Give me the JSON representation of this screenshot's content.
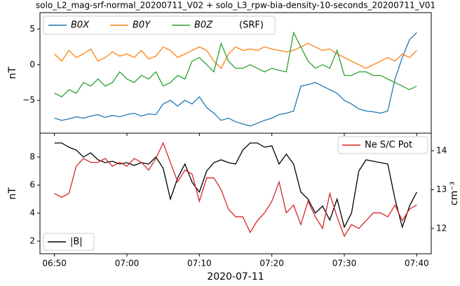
{
  "chart_data": [
    {
      "type": "line",
      "title": "solo_L2_mag-srf-normal_20200711_V02 + solo_L3_rpw-bia-density-10-seconds_20200711_V01",
      "ylabel": "nT",
      "legend": "upper left",
      "legend_note": "(SRF)",
      "x": [
        "06:50",
        "06:51",
        "06:52",
        "06:53",
        "06:54",
        "06:55",
        "06:56",
        "06:57",
        "06:58",
        "06:59",
        "07:00",
        "07:01",
        "07:02",
        "07:03",
        "07:04",
        "07:05",
        "07:06",
        "07:07",
        "07:08",
        "07:09",
        "07:10",
        "07:11",
        "07:12",
        "07:13",
        "07:14",
        "07:15",
        "07:16",
        "07:17",
        "07:18",
        "07:19",
        "07:20",
        "07:21",
        "07:22",
        "07:23",
        "07:24",
        "07:25",
        "07:26",
        "07:27",
        "07:28",
        "07:29",
        "07:30",
        "07:31",
        "07:32",
        "07:33",
        "07:34",
        "07:35",
        "07:36",
        "07:37",
        "07:38",
        "07:39",
        "07:40"
      ],
      "xlim": [
        "06:48",
        "07:42"
      ],
      "xticks": [
        "06:50",
        "07:00",
        "07:10",
        "07:20",
        "07:30",
        "07:40"
      ],
      "ylim": [
        -9.6,
        7.3
      ],
      "yticks": [
        {
          "value": -5,
          "label": "−5"
        },
        0,
        5
      ],
      "series": [
        {
          "name": "B0X",
          "color": "#1f77b4",
          "values": [
            -7.5,
            -7.8,
            -7.6,
            -7.3,
            -7.5,
            -7.2,
            -7.0,
            -7.4,
            -7.1,
            -7.3,
            -7.0,
            -6.8,
            -7.2,
            -6.9,
            -7.0,
            -5.5,
            -5.0,
            -5.8,
            -5.0,
            -5.5,
            -4.5,
            -6.0,
            -6.8,
            -7.8,
            -7.5,
            -8.0,
            -8.3,
            -8.6,
            -8.2,
            -7.8,
            -7.5,
            -7.0,
            -6.8,
            -6.5,
            -3.0,
            -2.8,
            -2.5,
            -3.0,
            -3.5,
            -4.0,
            -5.0,
            -5.5,
            -6.2,
            -6.5,
            -6.6,
            -6.8,
            -6.5,
            -2.0,
            1.0,
            3.5,
            4.5
          ]
        },
        {
          "name": "B0Y",
          "color": "#ff7f0e",
          "values": [
            1.5,
            0.5,
            2,
            1,
            1.5,
            2.2,
            0.5,
            1.0,
            1.8,
            1.2,
            1.5,
            1.0,
            2.0,
            0.8,
            1.2,
            2.5,
            2.0,
            1.0,
            1.5,
            2.0,
            2.5,
            2.0,
            0.5,
            -0.5,
            1.5,
            2.5,
            2.0,
            2.2,
            2.0,
            2.5,
            2.2,
            2.0,
            1.8,
            2.0,
            2.5,
            3.0,
            2.5,
            2.0,
            2.2,
            1.5,
            1.0,
            0.5,
            0.0,
            -0.5,
            0.0,
            0.5,
            1.0,
            0.5,
            1.5,
            1.0,
            2.0
          ]
        },
        {
          "name": "B0Z",
          "color": "#2ca02c",
          "values": [
            -4.0,
            -4.5,
            -3.5,
            -4.0,
            -2.5,
            -3.0,
            -2.0,
            -3.0,
            -2.5,
            -1.0,
            -2.0,
            -2.5,
            -1.5,
            -2.0,
            -1.0,
            -3.0,
            -2.5,
            -1.5,
            -2.0,
            0.5,
            1.0,
            0.0,
            -1.0,
            3.0,
            0.5,
            -0.5,
            -0.5,
            0.0,
            -0.5,
            -1.0,
            -0.5,
            -0.8,
            -1.0,
            4.5,
            2.5,
            0.5,
            -0.5,
            0.0,
            -0.5,
            2.0,
            -1.5,
            -1.5,
            -1.0,
            -1.0,
            -1.5,
            -1.5,
            -2.0,
            -2.5,
            -3.0,
            -3.5,
            -3.0
          ]
        }
      ]
    },
    {
      "type": "line",
      "xlabel": "2020-07-11",
      "ylabel": "nT",
      "y2label": "cm⁻³",
      "x": [
        "06:50",
        "06:51",
        "06:52",
        "06:53",
        "06:54",
        "06:55",
        "06:56",
        "06:57",
        "06:58",
        "06:59",
        "07:00",
        "07:01",
        "07:02",
        "07:03",
        "07:04",
        "07:05",
        "07:06",
        "07:07",
        "07:08",
        "07:09",
        "07:10",
        "07:11",
        "07:12",
        "07:13",
        "07:14",
        "07:15",
        "07:16",
        "07:17",
        "07:18",
        "07:19",
        "07:20",
        "07:21",
        "07:22",
        "07:23",
        "07:24",
        "07:25",
        "07:26",
        "07:27",
        "07:28",
        "07:29",
        "07:30",
        "07:31",
        "07:32",
        "07:33",
        "07:34",
        "07:35",
        "07:36",
        "07:37",
        "07:38",
        "07:39",
        "07:40"
      ],
      "xlim": [
        "06:48",
        "07:42"
      ],
      "xticks": [
        "06:50",
        "07:00",
        "07:10",
        "07:20",
        "07:30",
        "07:40"
      ],
      "ylim": [
        1.1,
        9.7
      ],
      "yticks": [
        2,
        4,
        6,
        8
      ],
      "y2lim": [
        11.35,
        14.45
      ],
      "y2ticks": [
        12,
        13,
        14
      ],
      "series": [
        {
          "name": "|B|",
          "color": "#000000",
          "legend_loc": "lower left",
          "values": [
            9.0,
            9.0,
            8.7,
            8.5,
            8.0,
            8.3,
            7.8,
            7.6,
            7.7,
            7.5,
            7.6,
            7.4,
            7.6,
            7.5,
            8.0,
            7.2,
            5.0,
            6.5,
            7.5,
            6.2,
            5.5,
            7.0,
            7.6,
            7.8,
            7.6,
            7.5,
            8.5,
            9.0,
            9.0,
            8.7,
            8.8,
            7.5,
            8.2,
            7.5,
            5.5,
            5.0,
            4.0,
            4.5,
            3.5,
            5.0,
            3.0,
            4.0,
            7.0,
            7.8,
            7.7,
            7.6,
            7.5,
            5.0,
            3.0,
            4.5,
            5.5
          ]
        },
        {
          "name": "Ne S/C Pot",
          "color": "#d62728",
          "axis": "y2",
          "legend_loc": "upper right",
          "values": [
            12.9,
            12.8,
            12.9,
            13.6,
            13.8,
            13.7,
            13.7,
            13.8,
            13.6,
            13.7,
            13.6,
            13.8,
            13.7,
            13.5,
            13.8,
            14.2,
            13.7,
            13.2,
            13.5,
            13.4,
            12.7,
            13.3,
            13.3,
            13.0,
            12.5,
            12.3,
            12.3,
            11.9,
            12.2,
            12.4,
            12.7,
            13.2,
            12.4,
            12.6,
            12.1,
            12.7,
            12.3,
            12.0,
            12.9,
            12.3,
            11.8,
            12.1,
            12.0,
            12.2,
            12.4,
            12.4,
            12.3,
            12.6,
            12.2,
            12.5,
            12.6
          ]
        }
      ]
    }
  ]
}
